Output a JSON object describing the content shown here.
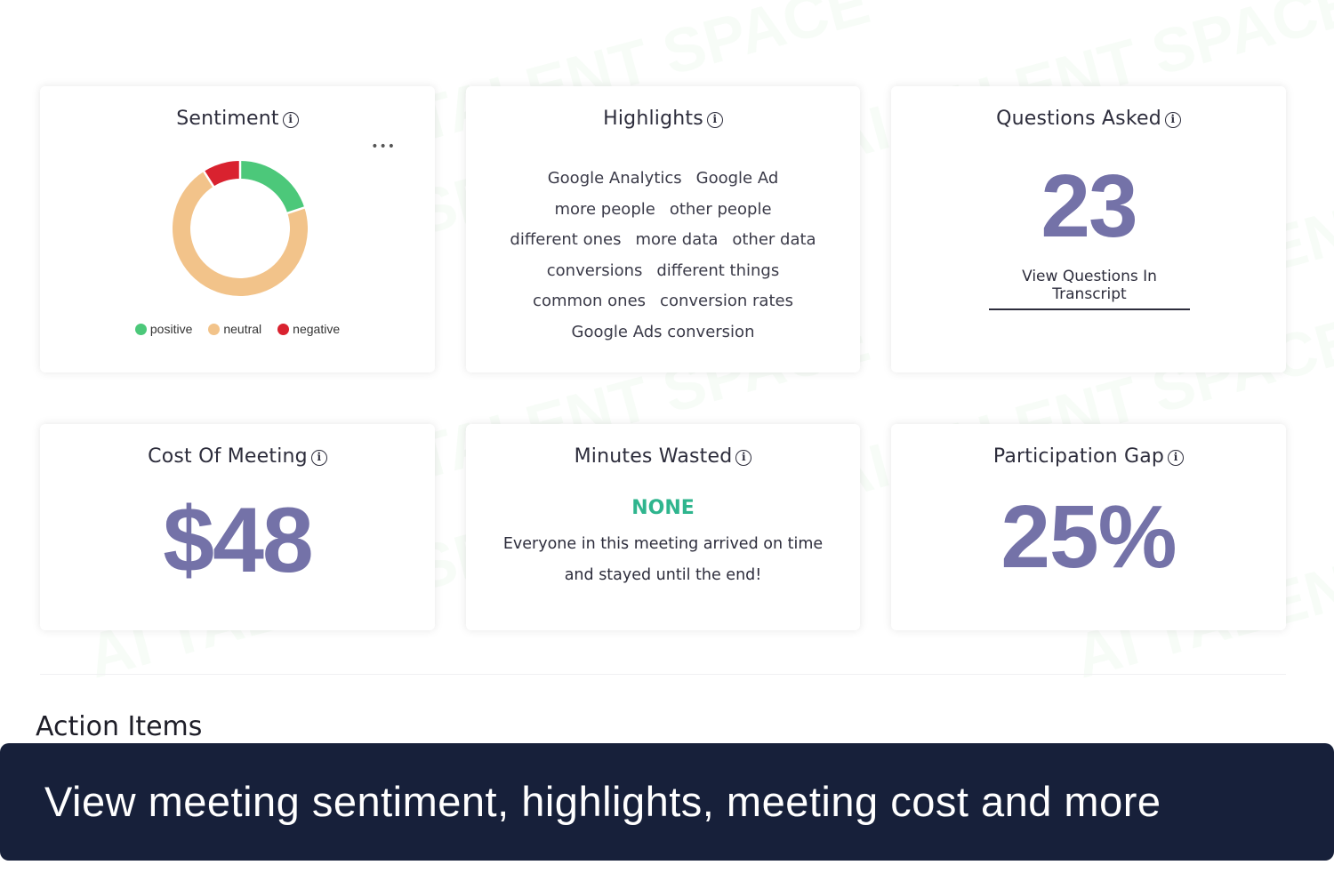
{
  "watermark": "AI TALENT SPACE",
  "colors": {
    "accent": "#7472a8",
    "positive": "#4cc87a",
    "neutral": "#f2c38a",
    "negative": "#d9222f",
    "none_green": "#2fb58e",
    "banner_bg": "#17203a"
  },
  "sentiment": {
    "title": "Sentiment",
    "info_icon": "info-icon",
    "menu_icon": "more-horizontal-icon",
    "chart_data": {
      "type": "pie",
      "categories": [
        "positive",
        "neutral",
        "negative"
      ],
      "values": [
        20,
        71,
        9
      ],
      "colors": [
        "#4cc87a",
        "#f2c38a",
        "#d9222f"
      ]
    },
    "legend": [
      "positive",
      "neutral",
      "negative"
    ]
  },
  "highlights": {
    "title": "Highlights",
    "rows": [
      [
        "Google Analytics",
        "Google Ad"
      ],
      [
        "more people",
        "other people"
      ],
      [
        "different ones",
        "more data",
        "other data"
      ],
      [
        "conversions",
        "different things"
      ],
      [
        "common ones",
        "conversion rates"
      ],
      [
        "Google Ads conversion"
      ]
    ]
  },
  "questions": {
    "title": "Questions Asked",
    "count": "23",
    "link": "View Questions In Transcript"
  },
  "cost": {
    "title": "Cost Of Meeting",
    "value": "$48"
  },
  "minutes": {
    "title": "Minutes Wasted",
    "status": "NONE",
    "message": "Everyone in this meeting arrived on time and stayed until the end!"
  },
  "participation": {
    "title": "Participation Gap",
    "value": "25%"
  },
  "action_items": {
    "title": "Action Items"
  },
  "banner": {
    "text": "View meeting sentiment, highlights, meeting cost and more"
  }
}
